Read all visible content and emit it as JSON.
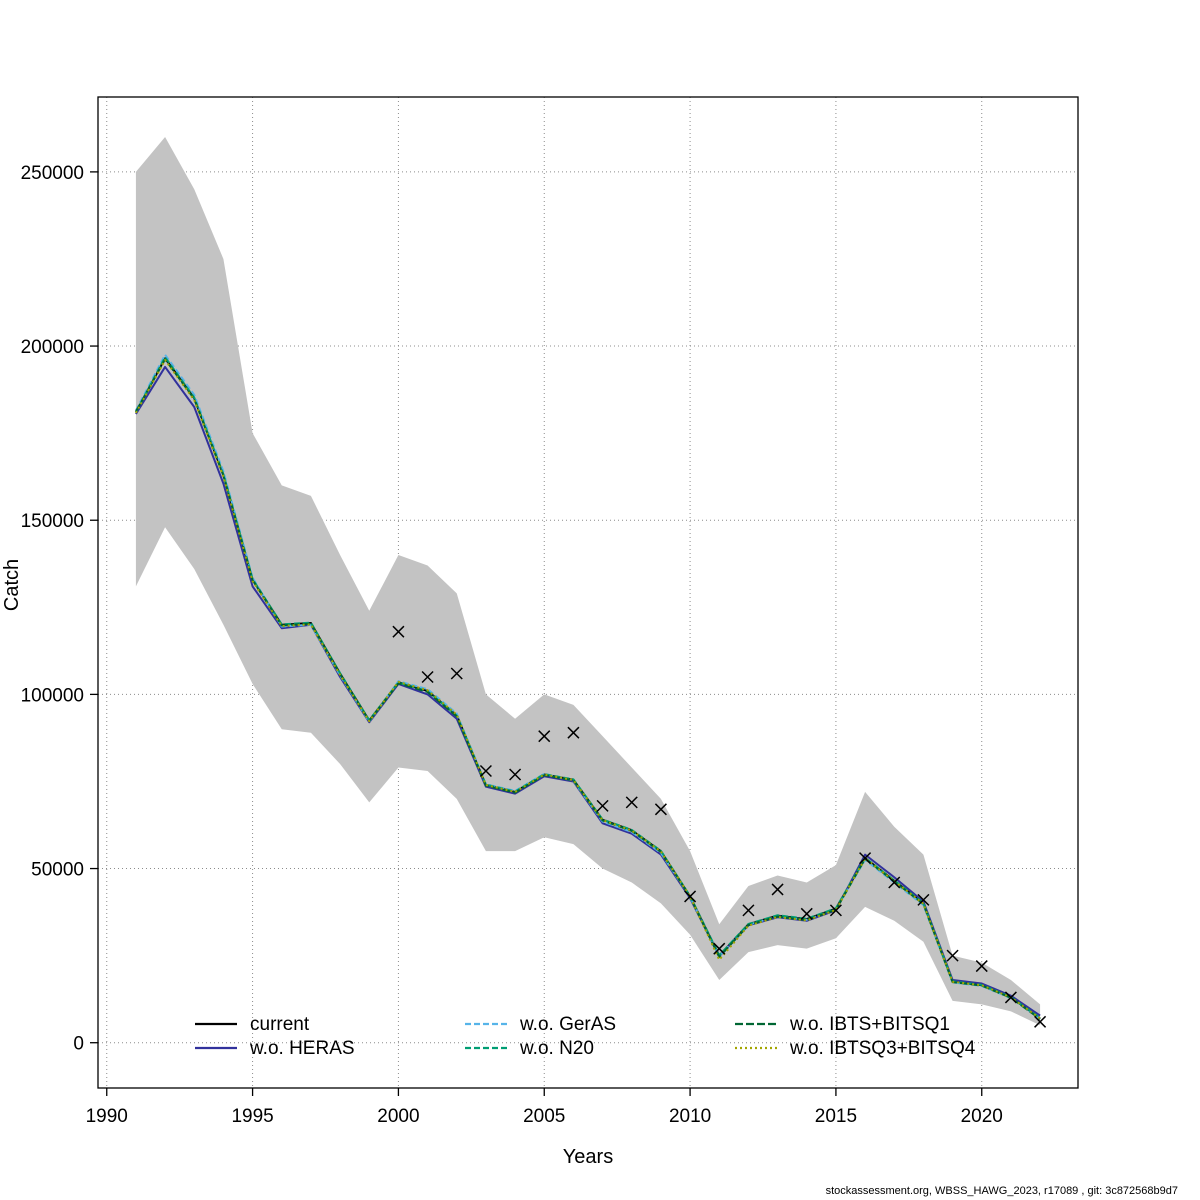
{
  "page": {
    "footer": "stockassessment.org, WBSS_HAWG_2023, r17089 , git: 3c872568b9d7"
  },
  "chart_data": {
    "type": "line",
    "title": "",
    "xlabel": "Years",
    "ylabel": "Catch",
    "xlim": [
      1989.7,
      2023.3
    ],
    "ylim": [
      -13000,
      271500
    ],
    "x_ticks": [
      1990,
      1995,
      2000,
      2005,
      2010,
      2015,
      2020
    ],
    "y_ticks": [
      0,
      50000,
      100000,
      150000,
      200000,
      250000
    ],
    "grid": true,
    "legend_position": "bottom-inside",
    "band": {
      "name": "confidence-band",
      "color": "#c3c3c3",
      "years": [
        1991,
        1992,
        1993,
        1994,
        1995,
        1996,
        1997,
        1998,
        1999,
        2000,
        2001,
        2002,
        2003,
        2004,
        2005,
        2006,
        2007,
        2008,
        2009,
        2010,
        2011,
        2012,
        2013,
        2014,
        2015,
        2016,
        2017,
        2018,
        2019,
        2020,
        2021,
        2022
      ],
      "lower": [
        131000,
        148000,
        136000,
        120000,
        103000,
        90000,
        89000,
        80000,
        69000,
        79000,
        78000,
        70000,
        55000,
        55000,
        59000,
        57000,
        50000,
        46000,
        40000,
        31000,
        18000,
        26000,
        28000,
        27000,
        30000,
        39000,
        35000,
        29000,
        12000,
        11000,
        9000,
        5000
      ],
      "upper": [
        250000,
        260000,
        245000,
        225000,
        175000,
        160000,
        157000,
        140000,
        124000,
        140000,
        137000,
        129000,
        100000,
        93000,
        100000,
        97000,
        88000,
        79000,
        70000,
        55000,
        34000,
        45000,
        48000,
        46000,
        51000,
        72000,
        62000,
        54000,
        25000,
        23000,
        18000,
        11000
      ]
    },
    "years": [
      1991,
      1992,
      1993,
      1994,
      1995,
      1996,
      1997,
      1998,
      1999,
      2000,
      2001,
      2002,
      2003,
      2004,
      2005,
      2006,
      2007,
      2008,
      2009,
      2010,
      2011,
      2012,
      2013,
      2014,
      2015,
      2016,
      2017,
      2018,
      2019,
      2020,
      2021,
      2022
    ],
    "series": [
      {
        "name": "current",
        "color": "#000000",
        "dash": "",
        "values": [
          181000,
          196500,
          185000,
          163000,
          133000,
          120000,
          120500,
          106000,
          92500,
          103500,
          101000,
          94000,
          74000,
          72000,
          77000,
          75500,
          64000,
          61000,
          55000,
          42000,
          25000,
          34000,
          36500,
          35500,
          38500,
          53000,
          46500,
          40000,
          17500,
          16500,
          13000,
          7000
        ]
      },
      {
        "name": "w.o. HERAS",
        "color": "#31319c",
        "dash": "",
        "values": [
          180500,
          194000,
          182500,
          160500,
          131000,
          119000,
          120000,
          105000,
          92000,
          103000,
          100000,
          93000,
          73500,
          71500,
          76500,
          75000,
          63000,
          60000,
          54000,
          41500,
          24800,
          33700,
          36000,
          35000,
          38000,
          54000,
          47500,
          40500,
          18000,
          17000,
          13500,
          7800
        ]
      },
      {
        "name": "w.o. GerAS",
        "color": "#56b4e9",
        "dash": "6,3",
        "values": [
          181500,
          197500,
          186000,
          164000,
          133500,
          119500,
          120000,
          105500,
          92200,
          103800,
          101500,
          94500,
          74200,
          72300,
          77200,
          75200,
          63500,
          60500,
          54500,
          41800,
          24900,
          33900,
          36300,
          35300,
          38300,
          52500,
          46000,
          39500,
          17300,
          16300,
          12800,
          6900
        ]
      },
      {
        "name": "w.o. N20",
        "color": "#009e73",
        "dash": "6,3",
        "values": [
          181000,
          196800,
          185200,
          163200,
          133100,
          120100,
          120600,
          106100,
          92600,
          103400,
          100900,
          93900,
          74100,
          72100,
          77100,
          75600,
          64100,
          61100,
          55100,
          42100,
          25100,
          34100,
          36600,
          35600,
          38600,
          53100,
          46600,
          40100,
          17600,
          16600,
          13100,
          7100
        ]
      },
      {
        "name": "w.o. IBTS+BITSQ1",
        "color": "#006633",
        "dash": "8,3",
        "values": [
          181200,
          196200,
          184800,
          162800,
          132800,
          119800,
          120300,
          105800,
          92400,
          103200,
          100700,
          93700,
          73800,
          71800,
          76800,
          75300,
          63800,
          60800,
          54800,
          41900,
          24600,
          33800,
          36200,
          35200,
          38200,
          52800,
          46300,
          39800,
          17400,
          16400,
          12900,
          6800
        ]
      },
      {
        "name": "w.o. IBTSQ3+BITSQ4",
        "color": "#a3a500",
        "dash": "2,3",
        "values": [
          180800,
          196000,
          184500,
          162500,
          132500,
          119600,
          120100,
          105600,
          92300,
          103600,
          101200,
          94200,
          74000,
          72000,
          77000,
          75400,
          63900,
          60900,
          54900,
          42000,
          23800,
          33600,
          36100,
          35100,
          38100,
          52900,
          46400,
          39900,
          17500,
          16500,
          13000,
          7000
        ]
      }
    ],
    "observed": {
      "name": "observed-catch-points",
      "marker": "x",
      "color": "#000000",
      "years": [
        2000,
        2001,
        2002,
        2003,
        2004,
        2005,
        2006,
        2007,
        2008,
        2009,
        2010,
        2011,
        2012,
        2013,
        2014,
        2015,
        2016,
        2017,
        2018,
        2019,
        2020,
        2021,
        2022
      ],
      "values": [
        118000,
        105000,
        106000,
        78000,
        77000,
        88000,
        89000,
        68000,
        69000,
        67000,
        42000,
        27000,
        38000,
        44000,
        37000,
        38000,
        53000,
        46000,
        41000,
        25000,
        22000,
        13000,
        6000
      ]
    },
    "legend": {
      "items": [
        {
          "label": "current",
          "color": "#000000",
          "dash": ""
        },
        {
          "label": "w.o. HERAS",
          "color": "#31319c",
          "dash": ""
        },
        {
          "label": "w.o. GerAS",
          "color": "#56b4e9",
          "dash": "6,3"
        },
        {
          "label": "w.o. N20",
          "color": "#009e73",
          "dash": "6,3"
        },
        {
          "label": "w.o. IBTS+BITSQ1",
          "color": "#006633",
          "dash": "8,3"
        },
        {
          "label": "w.o. IBTSQ3+BITSQ4",
          "color": "#a3a500",
          "dash": "2,3"
        }
      ]
    }
  }
}
